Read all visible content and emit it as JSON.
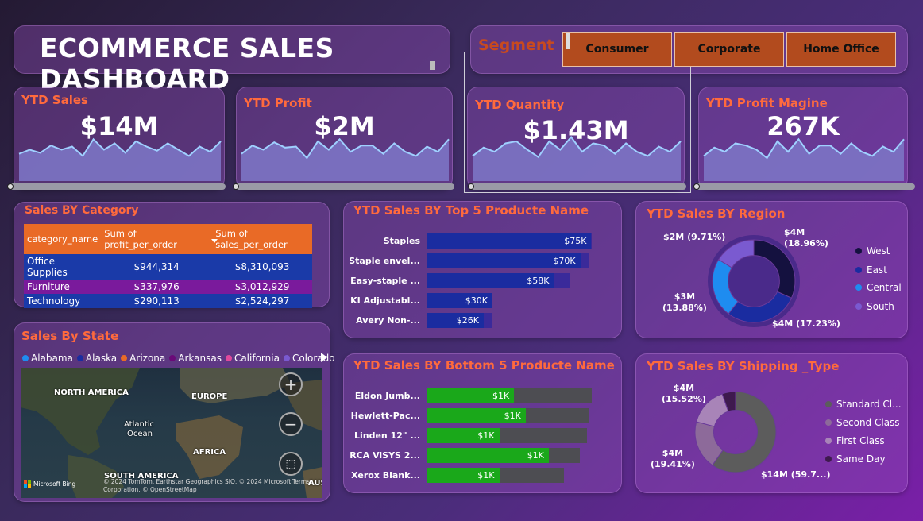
{
  "title": "ECOMMERCE SALES DASHBOARD",
  "segment": {
    "label": "Segment",
    "options": [
      "Consumer",
      "Corporate",
      "Home Office"
    ]
  },
  "kpis": [
    {
      "title": "YTD Sales",
      "value": "$14M",
      "spark": [
        26,
        30,
        27,
        34,
        30,
        33,
        24,
        40,
        30,
        36,
        27,
        38,
        33,
        29,
        36,
        30,
        24,
        33,
        28,
        38
      ]
    },
    {
      "title": "YTD Profit",
      "value": "$2M",
      "spark": [
        26,
        34,
        30,
        37,
        32,
        33,
        22,
        38,
        30,
        40,
        28,
        34,
        34,
        26,
        36,
        28,
        24,
        33,
        28,
        40
      ]
    },
    {
      "title": "YTD Quantity",
      "value": "$1.43M",
      "spark": [
        24,
        32,
        28,
        36,
        38,
        30,
        23,
        38,
        30,
        42,
        28,
        36,
        34,
        26,
        36,
        28,
        24,
        33,
        28,
        38
      ]
    },
    {
      "title": "YTD Profit Magine",
      "value": "267K",
      "spark": [
        24,
        32,
        28,
        36,
        34,
        30,
        22,
        38,
        28,
        40,
        26,
        34,
        34,
        26,
        36,
        28,
        24,
        33,
        28,
        40
      ]
    }
  ],
  "category": {
    "title": "Sales BY Category",
    "columns": [
      "category_name",
      "Sum of profit_per_order",
      "Sum of sales_per_order"
    ],
    "rows": [
      {
        "name": "Office Supplies",
        "profit": "$944,314",
        "sales": "$8,310,093"
      },
      {
        "name": "Furniture",
        "profit": "$337,976",
        "sales": "$3,012,929"
      },
      {
        "name": "Technology",
        "profit": "$290,113",
        "sales": "$2,524,297"
      }
    ]
  },
  "top5": {
    "title": "YTD Sales BY Top 5 Producte Name",
    "items": [
      {
        "name": "Staples",
        "label": "$75K",
        "value": 75,
        "track": 100
      },
      {
        "name": "Staple envel...",
        "label": "$70K",
        "value": 70,
        "track": 98
      },
      {
        "name": "Easy-staple ...",
        "label": "$58K",
        "value": 58,
        "track": 87
      },
      {
        "name": "KI Adjustabl...",
        "label": "$30K",
        "value": 30,
        "track": 40
      },
      {
        "name": "Avery Non-...",
        "label": "$26K",
        "value": 26,
        "track": 40
      }
    ]
  },
  "bottom5": {
    "title": "YTD Sales BY Bottom 5 Producte Name",
    "items": [
      {
        "name": "Eldon Jumb...",
        "label": "$1K",
        "value": 53,
        "track": 100
      },
      {
        "name": "Hewlett-Pac...",
        "label": "$1K",
        "value": 60,
        "track": 98
      },
      {
        "name": "Linden 12\" ...",
        "label": "$1K",
        "value": 44,
        "track": 97
      },
      {
        "name": "RCA ViSYS 2...",
        "label": "$1K",
        "value": 74,
        "track": 93
      },
      {
        "name": "Xerox Blank...",
        "label": "$1K",
        "value": 44,
        "track": 83
      }
    ]
  },
  "region": {
    "title": "YTD Sales BY Region",
    "slices": [
      {
        "name": "West",
        "value": 18.96,
        "color": "#14113f"
      },
      {
        "name": "East",
        "value": 17.23,
        "color": "#1a2ca0"
      },
      {
        "name": "Central",
        "value": 13.88,
        "color": "#1e8cf0"
      },
      {
        "name": "South",
        "value": 9.71,
        "color": "#7a5ad0"
      }
    ],
    "labels": [
      {
        "text": "$4M",
        "pct": "(18.96%)"
      },
      {
        "text": "$4M (17.23%)"
      },
      {
        "text": "$3M",
        "pct": "(13.88%)"
      },
      {
        "text": "$2M (9.71%)"
      }
    ],
    "legend": [
      "West",
      "East",
      "Central",
      "South"
    ]
  },
  "shipping": {
    "title": "YTD Sales BY Shipping _Type",
    "slices": [
      {
        "name": "Standard Cl...",
        "value": 59.7,
        "color": "#5c5c5c"
      },
      {
        "name": "Second Class",
        "value": 19.41,
        "color": "#8d6a9a"
      },
      {
        "name": "First Class",
        "value": 15.52,
        "color": "#a884b8"
      },
      {
        "name": "Same Day",
        "value": 5.37,
        "color": "#3e1a4e"
      }
    ],
    "labels": [
      {
        "text": "$14M (59.7...)"
      },
      {
        "text": "$4M",
        "pct": "(19.41%)"
      },
      {
        "text": "$4M",
        "pct": "(15.52%)"
      }
    ],
    "legend": [
      "Standard Cl...",
      "Second Class",
      "First Class",
      "Same Day"
    ]
  },
  "state": {
    "title": "Sales By State",
    "legend": [
      {
        "name": "Alabama",
        "color": "#1e8cf0"
      },
      {
        "name": "Alaska",
        "color": "#1a2ca0"
      },
      {
        "name": "Arizona",
        "color": "#e96a26"
      },
      {
        "name": "Arkansas",
        "color": "#6a0a78"
      },
      {
        "name": "California",
        "color": "#e04a9c"
      },
      {
        "name": "Colorado",
        "color": "#7a5ad0"
      }
    ],
    "map_labels": [
      "NORTH AMERICA",
      "EUROPE",
      "Atlantic",
      "Ocean",
      "AFRICA",
      "SOUTH AMERICA",
      "AUST"
    ],
    "attribution": "© 2024 TomTom, Earthstar Geographics SIO, © 2024 Microsoft Corporation, © OpenStreetMap",
    "terms": "Terms",
    "bing": "Microsoft Bing"
  }
}
